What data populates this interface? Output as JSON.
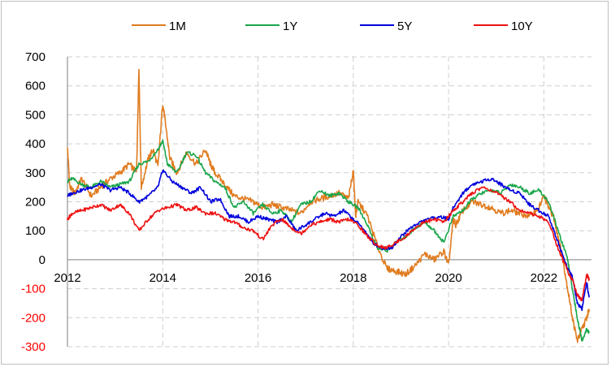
{
  "chart_data": {
    "type": "line",
    "title": "",
    "xlabel": "",
    "ylabel": "",
    "xlim": [
      2012,
      2023.0
    ],
    "ylim": [
      -300,
      700
    ],
    "grid": true,
    "legend_position": "top-center",
    "negative_tick_color": "#ff0000",
    "x_ticks": [
      2012,
      2014,
      2016,
      2018,
      2020,
      2022
    ],
    "x_tick_labels": [
      "2012",
      "2014",
      "2016",
      "2018",
      "2020",
      "2022"
    ],
    "y_ticks": [
      700,
      600,
      500,
      400,
      300,
      200,
      100,
      0,
      -100,
      -200,
      -300
    ],
    "y_tick_labels": [
      "700",
      "600",
      "500",
      "400",
      "300",
      "200",
      "100",
      "0",
      "-100",
      "-200",
      "-300"
    ],
    "series": [
      {
        "name": "1M",
        "color": "#e07b1f",
        "x": [
          2012.0,
          2012.05,
          2012.15,
          2012.3,
          2012.5,
          2012.7,
          2012.9,
          2013.1,
          2013.3,
          2013.45,
          2013.5,
          2013.55,
          2013.7,
          2013.8,
          2013.9,
          2014.0,
          2014.05,
          2014.15,
          2014.3,
          2014.5,
          2014.7,
          2014.9,
          2015.0,
          2015.1,
          2015.3,
          2015.5,
          2015.7,
          2015.9,
          2016.1,
          2016.3,
          2016.5,
          2016.7,
          2016.9,
          2017.1,
          2017.3,
          2017.5,
          2017.7,
          2017.9,
          2018.0,
          2018.05,
          2018.1,
          2018.3,
          2018.5,
          2018.7,
          2018.9,
          2019.1,
          2019.3,
          2019.5,
          2019.7,
          2019.9,
          2020.0,
          2020.1,
          2020.15,
          2020.3,
          2020.5,
          2020.7,
          2020.9,
          2021.1,
          2021.3,
          2021.5,
          2021.7,
          2021.9,
          2022.0,
          2022.1,
          2022.2,
          2022.3,
          2022.4,
          2022.5,
          2022.6,
          2022.7,
          2022.8,
          2022.9,
          2022.95
        ],
        "y": [
          390,
          250,
          230,
          280,
          220,
          250,
          280,
          300,
          330,
          300,
          660,
          250,
          350,
          380,
          320,
          540,
          480,
          350,
          300,
          370,
          330,
          380,
          330,
          300,
          260,
          220,
          210,
          200,
          180,
          190,
          180,
          170,
          160,
          200,
          210,
          220,
          230,
          210,
          310,
          150,
          200,
          150,
          50,
          -30,
          -40,
          -50,
          -20,
          20,
          0,
          30,
          -20,
          140,
          120,
          170,
          200,
          190,
          180,
          160,
          170,
          160,
          150,
          180,
          220,
          180,
          150,
          80,
          0,
          -100,
          -200,
          -280,
          -240,
          -200,
          -170
        ]
      },
      {
        "name": "1Y",
        "color": "#1aa64b",
        "x": [
          2012.0,
          2012.1,
          2012.3,
          2012.5,
          2012.7,
          2012.9,
          2013.1,
          2013.3,
          2013.5,
          2013.7,
          2013.9,
          2014.0,
          2014.1,
          2014.3,
          2014.5,
          2014.7,
          2014.9,
          2015.1,
          2015.3,
          2015.5,
          2015.7,
          2015.9,
          2016.1,
          2016.3,
          2016.5,
          2016.7,
          2016.9,
          2017.1,
          2017.3,
          2017.5,
          2017.7,
          2017.9,
          2018.1,
          2018.3,
          2018.5,
          2018.7,
          2018.9,
          2019.1,
          2019.3,
          2019.5,
          2019.7,
          2019.9,
          2020.1,
          2020.3,
          2020.5,
          2020.7,
          2020.9,
          2021.1,
          2021.3,
          2021.5,
          2021.7,
          2021.9,
          2022.1,
          2022.3,
          2022.5,
          2022.6,
          2022.7,
          2022.8,
          2022.9,
          2022.95
        ],
        "y": [
          270,
          280,
          260,
          250,
          270,
          250,
          260,
          270,
          330,
          340,
          380,
          410,
          330,
          300,
          370,
          360,
          300,
          270,
          250,
          180,
          200,
          160,
          190,
          160,
          170,
          130,
          190,
          200,
          240,
          220,
          230,
          200,
          180,
          120,
          40,
          30,
          60,
          80,
          110,
          130,
          100,
          60,
          150,
          170,
          210,
          230,
          240,
          230,
          260,
          250,
          230,
          240,
          200,
          100,
          0,
          -100,
          -200,
          -280,
          -240,
          -250
        ]
      },
      {
        "name": "5Y",
        "color": "#0000dd",
        "x": [
          2012.0,
          2012.1,
          2012.3,
          2012.5,
          2012.7,
          2012.9,
          2013.1,
          2013.3,
          2013.5,
          2013.7,
          2013.9,
          2014.0,
          2014.2,
          2014.4,
          2014.6,
          2014.8,
          2015.0,
          2015.2,
          2015.4,
          2015.6,
          2015.8,
          2016.0,
          2016.2,
          2016.4,
          2016.6,
          2016.8,
          2017.0,
          2017.2,
          2017.4,
          2017.6,
          2017.8,
          2018.0,
          2018.2,
          2018.4,
          2018.6,
          2018.8,
          2019.0,
          2019.2,
          2019.4,
          2019.6,
          2019.8,
          2020.0,
          2020.1,
          2020.3,
          2020.5,
          2020.7,
          2020.9,
          2021.1,
          2021.3,
          2021.5,
          2021.7,
          2021.9,
          2022.1,
          2022.3,
          2022.5,
          2022.6,
          2022.7,
          2022.8,
          2022.9,
          2022.95
        ],
        "y": [
          220,
          230,
          240,
          250,
          260,
          240,
          250,
          230,
          200,
          220,
          250,
          310,
          270,
          250,
          230,
          250,
          200,
          210,
          150,
          150,
          130,
          150,
          140,
          130,
          150,
          100,
          120,
          140,
          160,
          150,
          170,
          140,
          110,
          60,
          40,
          40,
          80,
          110,
          130,
          140,
          150,
          140,
          180,
          230,
          260,
          270,
          280,
          260,
          240,
          230,
          190,
          170,
          150,
          60,
          -30,
          -60,
          -150,
          -170,
          -80,
          -130
        ]
      },
      {
        "name": "10Y",
        "color": "#ee1111",
        "x": [
          2012.0,
          2012.1,
          2012.3,
          2012.5,
          2012.7,
          2012.9,
          2013.1,
          2013.3,
          2013.5,
          2013.7,
          2013.9,
          2014.1,
          2014.3,
          2014.5,
          2014.7,
          2014.9,
          2015.1,
          2015.3,
          2015.5,
          2015.7,
          2015.9,
          2016.1,
          2016.3,
          2016.5,
          2016.7,
          2016.9,
          2017.1,
          2017.3,
          2017.5,
          2017.7,
          2017.9,
          2018.1,
          2018.3,
          2018.5,
          2018.7,
          2018.9,
          2019.1,
          2019.3,
          2019.5,
          2019.7,
          2019.9,
          2020.1,
          2020.3,
          2020.5,
          2020.7,
          2020.9,
          2021.1,
          2021.3,
          2021.5,
          2021.7,
          2021.9,
          2022.1,
          2022.3,
          2022.5,
          2022.6,
          2022.7,
          2022.8,
          2022.9,
          2022.95
        ],
        "y": [
          140,
          160,
          170,
          180,
          190,
          170,
          190,
          160,
          100,
          140,
          170,
          180,
          190,
          170,
          180,
          160,
          160,
          140,
          130,
          110,
          100,
          70,
          120,
          140,
          110,
          90,
          120,
          130,
          140,
          130,
          140,
          120,
          80,
          50,
          40,
          60,
          80,
          110,
          130,
          140,
          130,
          170,
          200,
          230,
          250,
          240,
          220,
          200,
          170,
          160,
          150,
          130,
          40,
          -40,
          -70,
          -120,
          -140,
          -50,
          -70
        ]
      }
    ]
  }
}
